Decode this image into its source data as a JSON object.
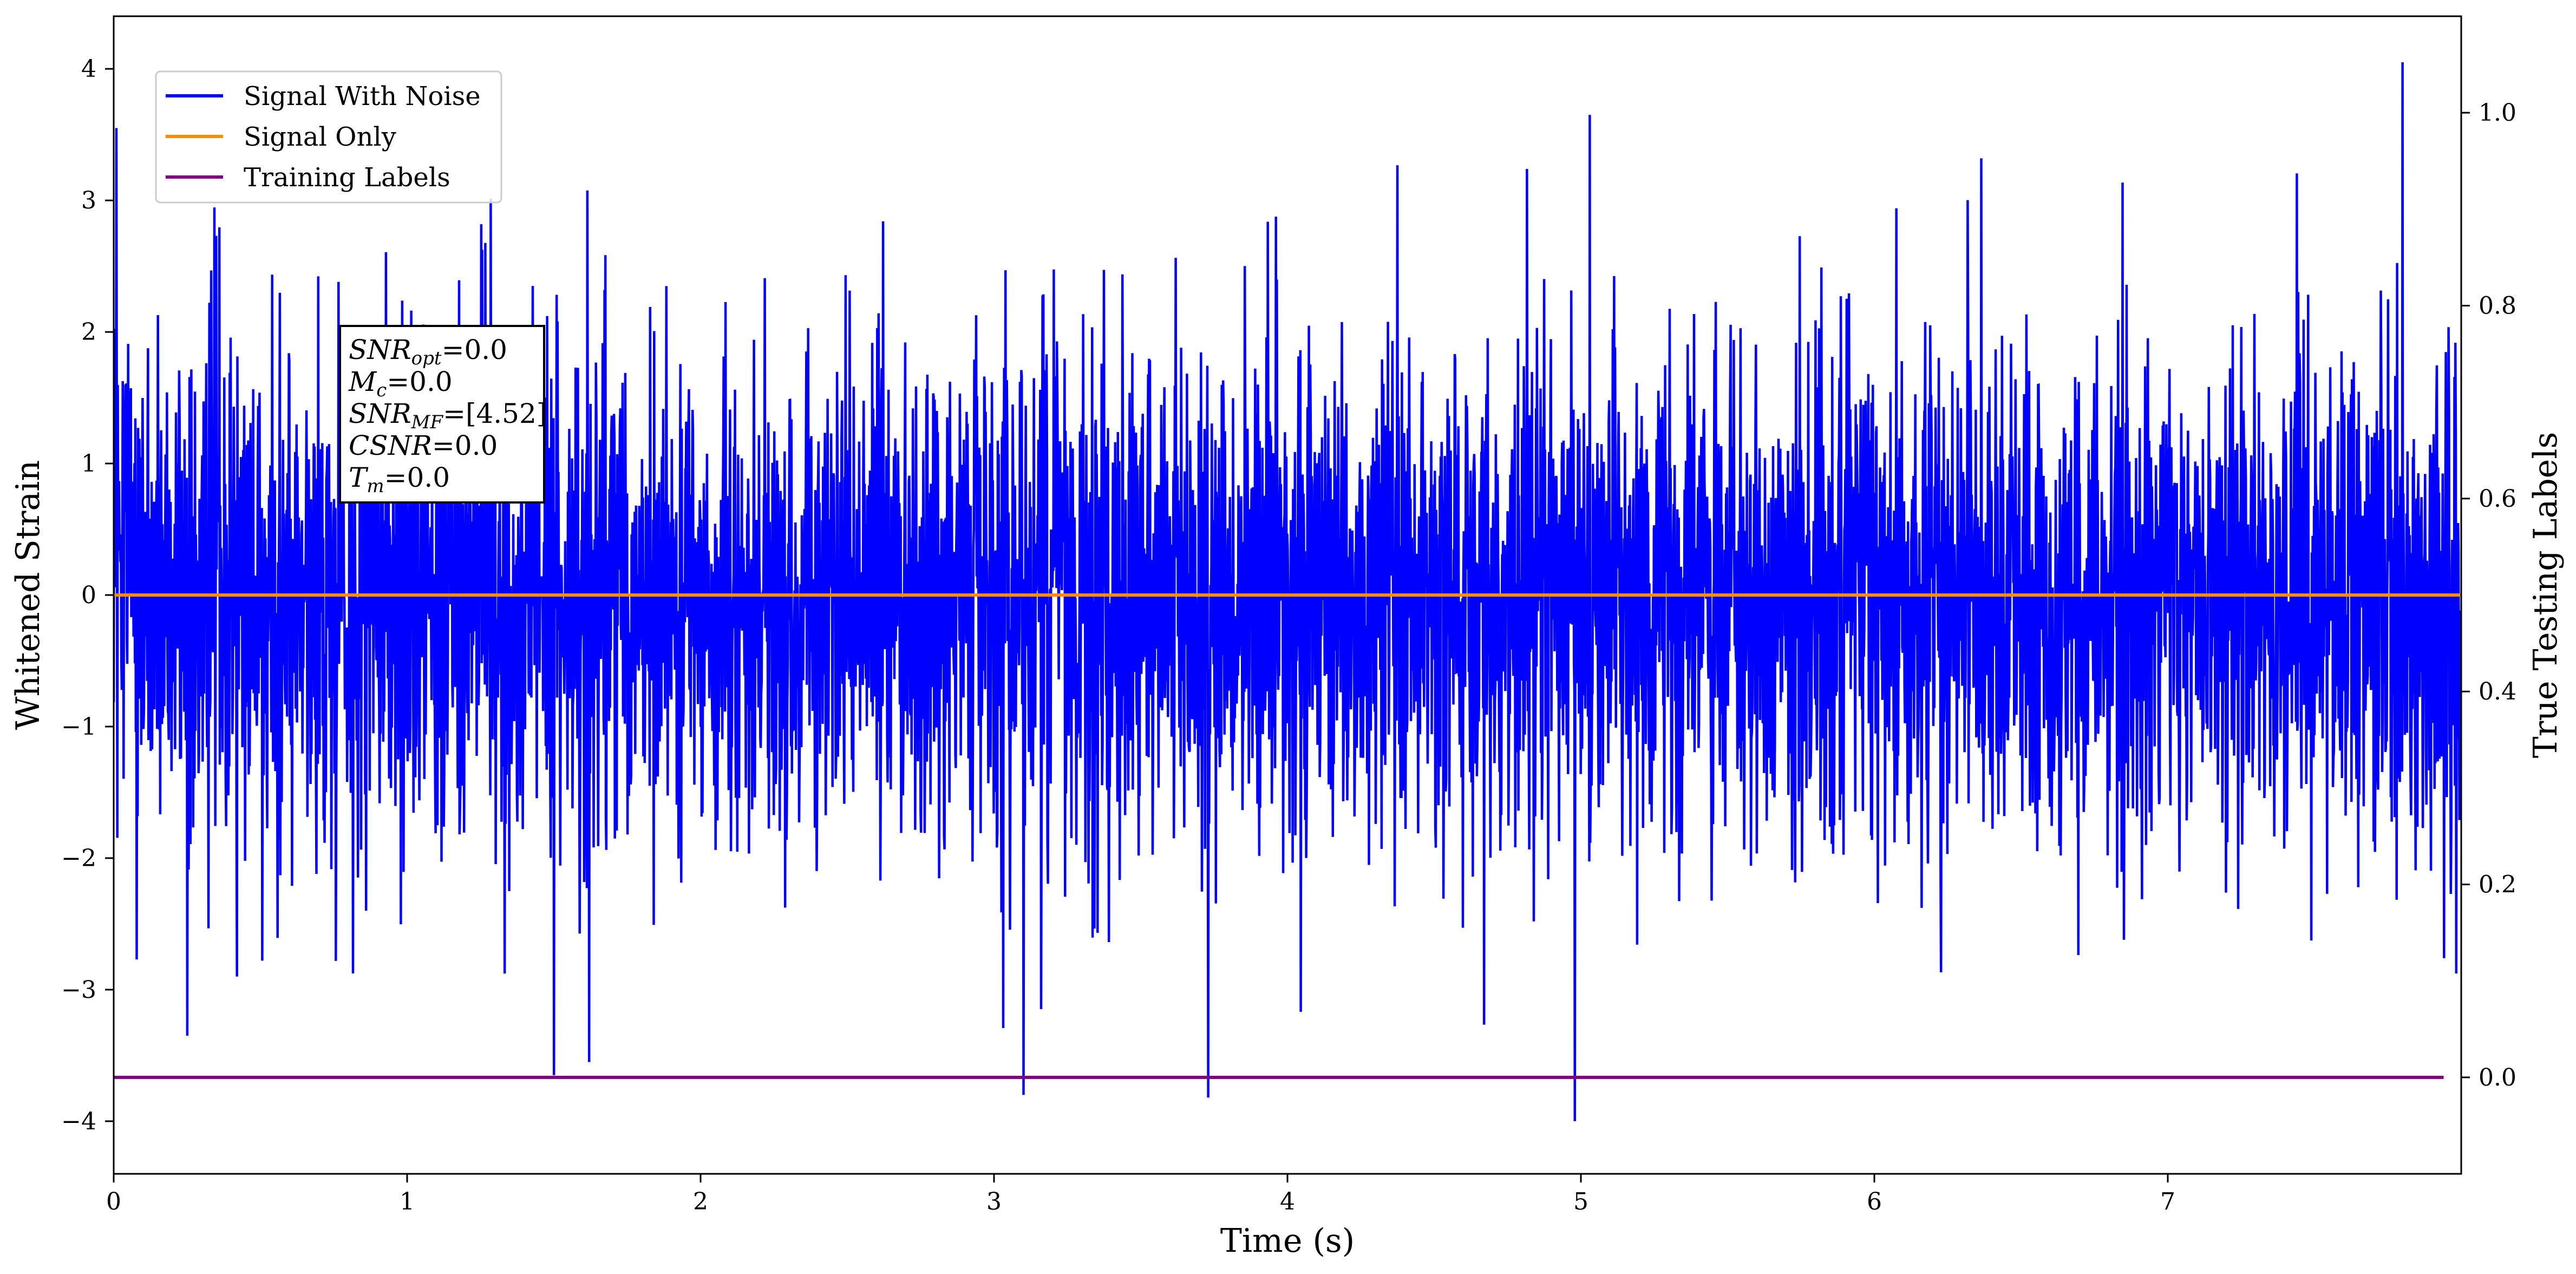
{
  "chart_data": {
    "type": "line",
    "title": "",
    "xlabel": "Time (s)",
    "ylabel": "Whitened Strain",
    "y2label": "True Testing Labels",
    "xlim": [
      0,
      8.0
    ],
    "ylim": [
      -4.4,
      4.4
    ],
    "y2lim": [
      -0.1,
      1.1
    ],
    "x_ticks": [
      0,
      1,
      2,
      3,
      4,
      5,
      6,
      7
    ],
    "x_tick_labels": [
      "0",
      "1",
      "2",
      "3",
      "4",
      "5",
      "6",
      "7"
    ],
    "y_ticks": [
      -4,
      -3,
      -2,
      -1,
      0,
      1,
      2,
      3,
      4
    ],
    "y_tick_labels": [
      "−4",
      "−3",
      "−2",
      "−1",
      "0",
      "1",
      "2",
      "3",
      "4"
    ],
    "y2_ticks": [
      0.0,
      0.2,
      0.4,
      0.6,
      0.8,
      1.0
    ],
    "y2_tick_labels": [
      "0.0",
      "0.2",
      "0.4",
      "0.6",
      "0.8",
      "1.0"
    ],
    "grid": false,
    "legend_position": "top-left",
    "series": [
      {
        "name": "Signal With Noise",
        "color": "#0000ff",
        "axis": "left",
        "description_values": "whitened Gaussian noise, approx. std 1, sampled over 0–8 s",
        "extremes": [
          {
            "x": 0.01,
            "y": 3.55
          },
          {
            "x": 0.42,
            "y": -2.9
          },
          {
            "x": 1.5,
            "y": -3.65
          },
          {
            "x": 1.62,
            "y": -3.55
          },
          {
            "x": 3.1,
            "y": -3.8
          },
          {
            "x": 3.73,
            "y": -3.82
          },
          {
            "x": 4.98,
            "y": -4.0
          },
          {
            "x": 5.03,
            "y": 3.65
          },
          {
            "x": 7.8,
            "y": 4.05
          }
        ]
      },
      {
        "name": "Signal Only",
        "color": "#ff8c00",
        "axis": "left",
        "x": [
          0,
          8.0
        ],
        "y": [
          0,
          0
        ]
      },
      {
        "name": "Training Labels",
        "color": "#800080",
        "axis": "right",
        "x": [
          0,
          7.94
        ],
        "y": [
          0,
          0
        ]
      }
    ],
    "annotation": {
      "lines": [
        {
          "sym": "SNR",
          "sub": "opt",
          "value": "=0.0"
        },
        {
          "sym": "M",
          "sub": "c",
          "value": "=0.0"
        },
        {
          "sym": "SNR",
          "sub": "MF",
          "value": "=[4.52]"
        },
        {
          "sym": "CSNR",
          "sub": "",
          "value": "=0.0"
        },
        {
          "sym": "T",
          "sub": "m",
          "value": "=0.0"
        }
      ]
    }
  }
}
